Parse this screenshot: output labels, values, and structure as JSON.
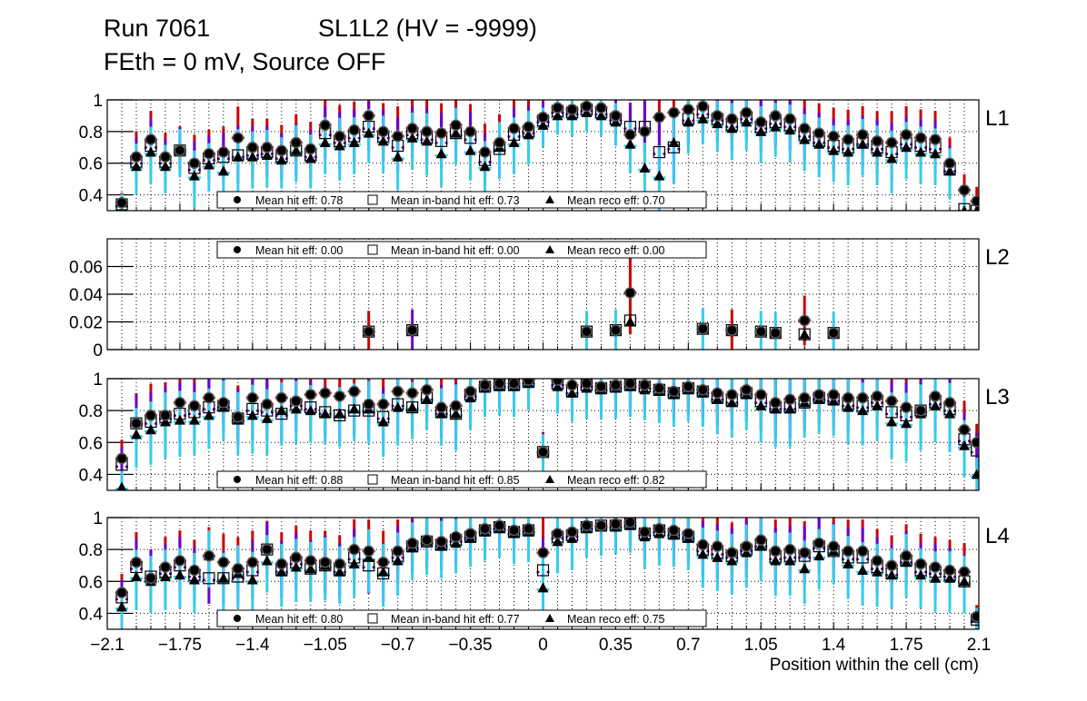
{
  "header": {
    "run": "Run 7061",
    "chamber": "SL1L2 (HV = -9999)",
    "subtitle": "FEth = 0 mV, Source OFF"
  },
  "colors": {
    "hit": "#000000",
    "hit_err": "#cc0000",
    "inband_err": "#6a00cc",
    "reco_err": "#33ccee",
    "frame": "#000000",
    "grid": "#000000"
  },
  "chart_data": {
    "type": "scatter",
    "title": "Run 7061   SL1L2 (HV = -9999) / FEth = 0 mV, Source OFF",
    "xlabel": "Position within the cell (cm)",
    "xlim": [
      -2.1,
      2.1
    ],
    "x_ticks": [
      "−2.1",
      "−1.75",
      "−1.4",
      "−1.05",
      "−0.7",
      "−0.35",
      "0",
      "0.35",
      "0.7",
      "1.05",
      "1.4",
      "1.75",
      "2.1"
    ],
    "x_tick_values": [
      -2.1,
      -1.75,
      -1.4,
      -1.05,
      -0.7,
      -0.35,
      0,
      0.35,
      0.7,
      1.05,
      1.4,
      1.75,
      2.1
    ],
    "grid": true,
    "series_names": [
      "Mean hit eff",
      "Mean in-band hit eff",
      "Mean reco eff"
    ],
    "panels": [
      {
        "label": "L1",
        "ylim": [
          0.3,
          1.0
        ],
        "y_ticks": [
          "0.4",
          "0.6",
          "0.8",
          "1"
        ],
        "y_tick_values": [
          0.4,
          0.6,
          0.8,
          1.0
        ],
        "legend_position": "bottom",
        "legend": [
          "Mean hit  eff: 0.78",
          "Mean in-band hit eff: 0.73",
          "Mean reco eff: 0.70"
        ],
        "x": [
          -2.03,
          -1.96,
          -1.89,
          -1.82,
          -1.75,
          -1.68,
          -1.61,
          -1.54,
          -1.47,
          -1.4,
          -1.33,
          -1.26,
          -1.19,
          -1.12,
          -1.05,
          -0.98,
          -0.91,
          -0.84,
          -0.77,
          -0.7,
          -0.63,
          -0.56,
          -0.49,
          -0.42,
          -0.35,
          -0.28,
          -0.21,
          -0.14,
          -0.07,
          0.0,
          0.07,
          0.14,
          0.21,
          0.28,
          0.35,
          0.42,
          0.49,
          0.56,
          0.63,
          0.7,
          0.77,
          0.84,
          0.91,
          0.98,
          1.05,
          1.12,
          1.19,
          1.26,
          1.33,
          1.4,
          1.47,
          1.54,
          1.61,
          1.68,
          1.75,
          1.82,
          1.89,
          1.96,
          2.03,
          2.09
        ],
        "hit": [
          0.35,
          0.64,
          0.75,
          0.64,
          0.68,
          0.6,
          0.66,
          0.67,
          0.76,
          0.7,
          0.7,
          0.68,
          0.73,
          0.69,
          0.84,
          0.77,
          0.81,
          0.9,
          0.8,
          0.77,
          0.82,
          0.8,
          0.79,
          0.84,
          0.8,
          0.67,
          0.73,
          0.82,
          0.83,
          0.89,
          0.95,
          0.94,
          0.96,
          0.95,
          0.9,
          0.78,
          0.8,
          0.89,
          0.92,
          0.94,
          0.96,
          0.9,
          0.88,
          0.92,
          0.86,
          0.9,
          0.88,
          0.82,
          0.79,
          0.77,
          0.75,
          0.78,
          0.74,
          0.73,
          0.78,
          0.76,
          0.75,
          0.6,
          0.43,
          0.36
        ],
        "inband": [
          0.34,
          0.61,
          0.71,
          0.61,
          0.68,
          0.57,
          0.63,
          0.64,
          0.65,
          0.66,
          0.67,
          0.64,
          0.68,
          0.65,
          0.79,
          0.74,
          0.77,
          0.83,
          0.77,
          0.71,
          0.79,
          0.76,
          0.74,
          0.79,
          0.76,
          0.62,
          0.69,
          0.78,
          0.8,
          0.87,
          0.93,
          0.92,
          0.94,
          0.92,
          0.88,
          0.83,
          0.83,
          0.67,
          0.7,
          0.88,
          0.92,
          0.88,
          0.84,
          0.89,
          0.83,
          0.86,
          0.84,
          0.78,
          0.74,
          0.71,
          0.7,
          0.73,
          0.7,
          0.67,
          0.73,
          0.71,
          0.7,
          0.56,
          0.31,
          0.3
        ],
        "reco": [
          0.35,
          0.58,
          0.67,
          0.58,
          0.68,
          0.52,
          0.59,
          0.55,
          0.64,
          0.64,
          0.65,
          0.62,
          0.68,
          0.63,
          0.73,
          0.71,
          0.73,
          0.79,
          0.74,
          0.64,
          0.76,
          0.74,
          0.66,
          0.79,
          0.68,
          0.58,
          0.7,
          0.73,
          0.78,
          0.84,
          0.9,
          0.9,
          0.92,
          0.9,
          0.86,
          0.72,
          0.57,
          0.52,
          0.73,
          0.86,
          0.88,
          0.85,
          0.82,
          0.86,
          0.8,
          0.83,
          0.81,
          0.75,
          0.72,
          0.68,
          0.67,
          0.72,
          0.67,
          0.63,
          0.7,
          0.67,
          0.66,
          0.55,
          0.3,
          0.3
        ],
        "err": [
          0.07,
          0.18,
          0.2,
          0.17,
          0.17,
          0.2,
          0.17,
          0.18,
          0.22,
          0.2,
          0.2,
          0.18,
          0.2,
          0.19,
          0.2,
          0.22,
          0.2,
          0.19,
          0.2,
          0.21,
          0.2,
          0.22,
          0.21,
          0.2,
          0.19,
          0.2,
          0.2,
          0.2,
          0.19,
          0.14,
          0.12,
          0.13,
          0.12,
          0.13,
          0.15,
          0.18,
          0.2,
          0.24,
          0.26,
          0.2,
          0.16,
          0.18,
          0.2,
          0.18,
          0.2,
          0.19,
          0.2,
          0.2,
          0.21,
          0.2,
          0.21,
          0.2,
          0.21,
          0.22,
          0.2,
          0.2,
          0.2,
          0.18,
          0.11,
          0.1
        ]
      },
      {
        "label": "L2",
        "ylim": [
          0,
          0.08
        ],
        "y_ticks": [
          "0",
          "0.02",
          "0.04",
          "0.06"
        ],
        "y_tick_values": [
          0,
          0.02,
          0.04,
          0.06
        ],
        "legend_position": "top",
        "legend": [
          "Mean hit  eff: 0.00",
          "Mean in-band hit eff: 0.00",
          "Mean reco eff: 0.00"
        ],
        "x": [
          -0.84,
          -0.63,
          0.21,
          0.35,
          0.42,
          0.77,
          0.91,
          1.05,
          1.12,
          1.26,
          1.4
        ],
        "hit": [
          0.013,
          0.014,
          0.013,
          0.014,
          0.041,
          0.015,
          0.014,
          0.013,
          0.012,
          0.021,
          0.012
        ],
        "inband": [
          0.013,
          0.014,
          0.013,
          0.014,
          0.021,
          0.015,
          0.014,
          0.013,
          0.012,
          0.011,
          0.012
        ],
        "reco": [
          0.013,
          0.014,
          0.013,
          0.014,
          0.02,
          0.015,
          0.014,
          0.013,
          0.012,
          0.011,
          0.012
        ],
        "err": [
          0.015,
          0.015,
          0.015,
          0.015,
          0.03,
          0.015,
          0.015,
          0.015,
          0.015,
          0.018,
          0.015
        ],
        "err_color": [
          "hit",
          "inband",
          "reco",
          "reco",
          "hit",
          "reco",
          "hit",
          "reco",
          "reco",
          "hit",
          "reco"
        ]
      },
      {
        "label": "L3",
        "ylim": [
          0.3,
          1.0
        ],
        "y_ticks": [
          "0.4",
          "0.6",
          "0.8",
          "1"
        ],
        "y_tick_values": [
          0.4,
          0.6,
          0.8,
          1.0
        ],
        "legend_position": "bottom",
        "legend": [
          "Mean hit  eff: 0.88",
          "Mean in-band hit eff: 0.85",
          "Mean reco eff: 0.82"
        ],
        "x": [
          -2.03,
          -1.96,
          -1.89,
          -1.82,
          -1.75,
          -1.68,
          -1.61,
          -1.54,
          -1.47,
          -1.4,
          -1.33,
          -1.26,
          -1.19,
          -1.12,
          -1.05,
          -0.98,
          -0.91,
          -0.84,
          -0.77,
          -0.7,
          -0.63,
          -0.56,
          -0.49,
          -0.42,
          -0.35,
          -0.28,
          -0.21,
          -0.14,
          -0.07,
          0.0,
          0.07,
          0.14,
          0.21,
          0.28,
          0.35,
          0.42,
          0.49,
          0.56,
          0.63,
          0.7,
          0.77,
          0.84,
          0.91,
          0.98,
          1.05,
          1.12,
          1.19,
          1.26,
          1.33,
          1.4,
          1.47,
          1.54,
          1.61,
          1.68,
          1.75,
          1.82,
          1.89,
          1.96,
          2.03,
          2.09
        ],
        "hit": [
          0.5,
          0.72,
          0.77,
          0.77,
          0.85,
          0.83,
          0.88,
          0.85,
          0.76,
          0.88,
          0.84,
          0.88,
          0.86,
          0.9,
          0.91,
          0.89,
          0.92,
          0.84,
          0.84,
          0.92,
          0.91,
          0.93,
          0.82,
          0.83,
          0.92,
          0.96,
          0.97,
          0.97,
          0.99,
          0.54,
          0.99,
          0.96,
          0.97,
          0.95,
          0.96,
          0.97,
          0.96,
          0.94,
          0.92,
          0.95,
          0.93,
          0.91,
          0.9,
          0.93,
          0.9,
          0.85,
          0.87,
          0.88,
          0.9,
          0.9,
          0.88,
          0.88,
          0.89,
          0.86,
          0.82,
          0.8,
          0.89,
          0.85,
          0.68,
          0.6
        ],
        "inband": [
          0.46,
          0.72,
          0.73,
          0.76,
          0.78,
          0.79,
          0.82,
          0.83,
          0.75,
          0.81,
          0.8,
          0.78,
          0.84,
          0.82,
          0.79,
          0.77,
          0.8,
          0.8,
          0.76,
          0.84,
          0.82,
          0.88,
          0.79,
          0.78,
          0.9,
          0.95,
          0.96,
          0.96,
          0.98,
          0.54,
          0.97,
          0.92,
          0.96,
          0.94,
          0.95,
          0.96,
          0.95,
          0.93,
          0.91,
          0.94,
          0.92,
          0.88,
          0.86,
          0.91,
          0.86,
          0.82,
          0.82,
          0.85,
          0.88,
          0.87,
          0.84,
          0.83,
          0.86,
          0.79,
          0.77,
          0.8,
          0.85,
          0.81,
          0.62,
          0.55
        ],
        "reco": [
          0.32,
          0.65,
          0.68,
          0.73,
          0.74,
          0.74,
          0.77,
          0.82,
          0.74,
          0.77,
          0.75,
          0.8,
          0.81,
          0.8,
          0.78,
          0.78,
          0.81,
          0.81,
          0.73,
          0.82,
          0.82,
          0.87,
          0.78,
          0.78,
          0.88,
          0.94,
          0.95,
          0.95,
          0.97,
          0.54,
          0.95,
          0.91,
          0.94,
          0.93,
          0.94,
          0.95,
          0.93,
          0.92,
          0.9,
          0.93,
          0.91,
          0.87,
          0.85,
          0.9,
          0.83,
          0.81,
          0.81,
          0.85,
          0.87,
          0.86,
          0.82,
          0.8,
          0.83,
          0.73,
          0.72,
          0.78,
          0.83,
          0.78,
          0.58,
          0.4
        ],
        "err": [
          0.13,
          0.21,
          0.22,
          0.23,
          0.23,
          0.22,
          0.21,
          0.21,
          0.22,
          0.24,
          0.23,
          0.22,
          0.22,
          0.2,
          0.19,
          0.21,
          0.2,
          0.22,
          0.22,
          0.24,
          0.2,
          0.19,
          0.2,
          0.23,
          0.2,
          0.18,
          0.18,
          0.19,
          0.17,
          0.14,
          0.17,
          0.18,
          0.19,
          0.18,
          0.19,
          0.19,
          0.19,
          0.2,
          0.2,
          0.2,
          0.21,
          0.22,
          0.22,
          0.22,
          0.23,
          0.24,
          0.24,
          0.22,
          0.21,
          0.22,
          0.23,
          0.22,
          0.22,
          0.23,
          0.24,
          0.23,
          0.23,
          0.24,
          0.2,
          0.13
        ]
      },
      {
        "label": "L4",
        "ylim": [
          0.3,
          1.0
        ],
        "y_ticks": [
          "0.4",
          "0.6",
          "0.8",
          "1"
        ],
        "y_tick_values": [
          0.4,
          0.6,
          0.8,
          1.0
        ],
        "legend_position": "bottom",
        "legend": [
          "Mean hit  eff: 0.80",
          "Mean in-band hit eff: 0.77",
          "Mean reco eff: 0.75"
        ],
        "x": [
          -2.03,
          -1.96,
          -1.89,
          -1.82,
          -1.75,
          -1.68,
          -1.61,
          -1.54,
          -1.47,
          -1.4,
          -1.33,
          -1.26,
          -1.19,
          -1.12,
          -1.05,
          -0.98,
          -0.91,
          -0.84,
          -0.77,
          -0.7,
          -0.63,
          -0.56,
          -0.49,
          -0.42,
          -0.35,
          -0.28,
          -0.21,
          -0.14,
          -0.07,
          0.0,
          0.07,
          0.14,
          0.21,
          0.28,
          0.35,
          0.42,
          0.49,
          0.56,
          0.63,
          0.7,
          0.77,
          0.84,
          0.91,
          0.98,
          1.05,
          1.12,
          1.19,
          1.26,
          1.33,
          1.4,
          1.47,
          1.54,
          1.61,
          1.68,
          1.75,
          1.82,
          1.89,
          1.96,
          2.03,
          2.09
        ],
        "hit": [
          0.53,
          0.72,
          0.62,
          0.69,
          0.73,
          0.67,
          0.76,
          0.72,
          0.68,
          0.72,
          0.8,
          0.71,
          0.75,
          0.73,
          0.72,
          0.71,
          0.8,
          0.79,
          0.72,
          0.79,
          0.84,
          0.86,
          0.85,
          0.88,
          0.9,
          0.93,
          0.95,
          0.92,
          0.93,
          0.78,
          0.9,
          0.91,
          0.95,
          0.95,
          0.96,
          0.97,
          0.91,
          0.93,
          0.92,
          0.9,
          0.83,
          0.82,
          0.78,
          0.82,
          0.86,
          0.79,
          0.8,
          0.78,
          0.84,
          0.82,
          0.79,
          0.79,
          0.73,
          0.7,
          0.76,
          0.71,
          0.69,
          0.67,
          0.66,
          0.38
        ],
        "inband": [
          0.5,
          0.69,
          0.63,
          0.66,
          0.7,
          0.64,
          0.62,
          0.62,
          0.63,
          0.67,
          0.8,
          0.67,
          0.72,
          0.68,
          0.7,
          0.67,
          0.75,
          0.7,
          0.65,
          0.76,
          0.82,
          0.85,
          0.83,
          0.86,
          0.88,
          0.92,
          0.94,
          0.91,
          0.92,
          0.67,
          0.88,
          0.89,
          0.94,
          0.95,
          0.95,
          0.96,
          0.9,
          0.92,
          0.9,
          0.88,
          0.8,
          0.78,
          0.76,
          0.8,
          0.83,
          0.75,
          0.76,
          0.76,
          0.82,
          0.79,
          0.75,
          0.75,
          0.69,
          0.65,
          0.73,
          0.67,
          0.66,
          0.64,
          0.6,
          0.36
        ],
        "reco": [
          0.44,
          0.63,
          0.6,
          0.63,
          0.64,
          0.61,
          0.76,
          0.62,
          0.65,
          0.61,
          0.73,
          0.66,
          0.69,
          0.68,
          0.7,
          0.66,
          0.71,
          0.75,
          0.66,
          0.73,
          0.81,
          0.85,
          0.82,
          0.84,
          0.87,
          0.91,
          0.93,
          0.9,
          0.91,
          0.56,
          0.85,
          0.87,
          0.93,
          0.94,
          0.94,
          0.95,
          0.88,
          0.9,
          0.89,
          0.87,
          0.77,
          0.75,
          0.73,
          0.78,
          0.82,
          0.73,
          0.73,
          0.68,
          0.76,
          0.79,
          0.71,
          0.67,
          0.66,
          0.64,
          0.72,
          0.64,
          0.62,
          0.62,
          0.6,
          0.37
        ],
        "err": [
          0.13,
          0.21,
          0.2,
          0.21,
          0.21,
          0.21,
          0.2,
          0.2,
          0.22,
          0.22,
          0.2,
          0.22,
          0.22,
          0.21,
          0.22,
          0.2,
          0.21,
          0.22,
          0.22,
          0.22,
          0.2,
          0.21,
          0.2,
          0.19,
          0.18,
          0.18,
          0.18,
          0.19,
          0.19,
          0.24,
          0.2,
          0.2,
          0.18,
          0.18,
          0.17,
          0.17,
          0.2,
          0.2,
          0.2,
          0.2,
          0.21,
          0.21,
          0.21,
          0.22,
          0.22,
          0.22,
          0.22,
          0.22,
          0.21,
          0.21,
          0.22,
          0.22,
          0.22,
          0.21,
          0.22,
          0.21,
          0.21,
          0.21,
          0.2,
          0.08
        ]
      }
    ]
  }
}
